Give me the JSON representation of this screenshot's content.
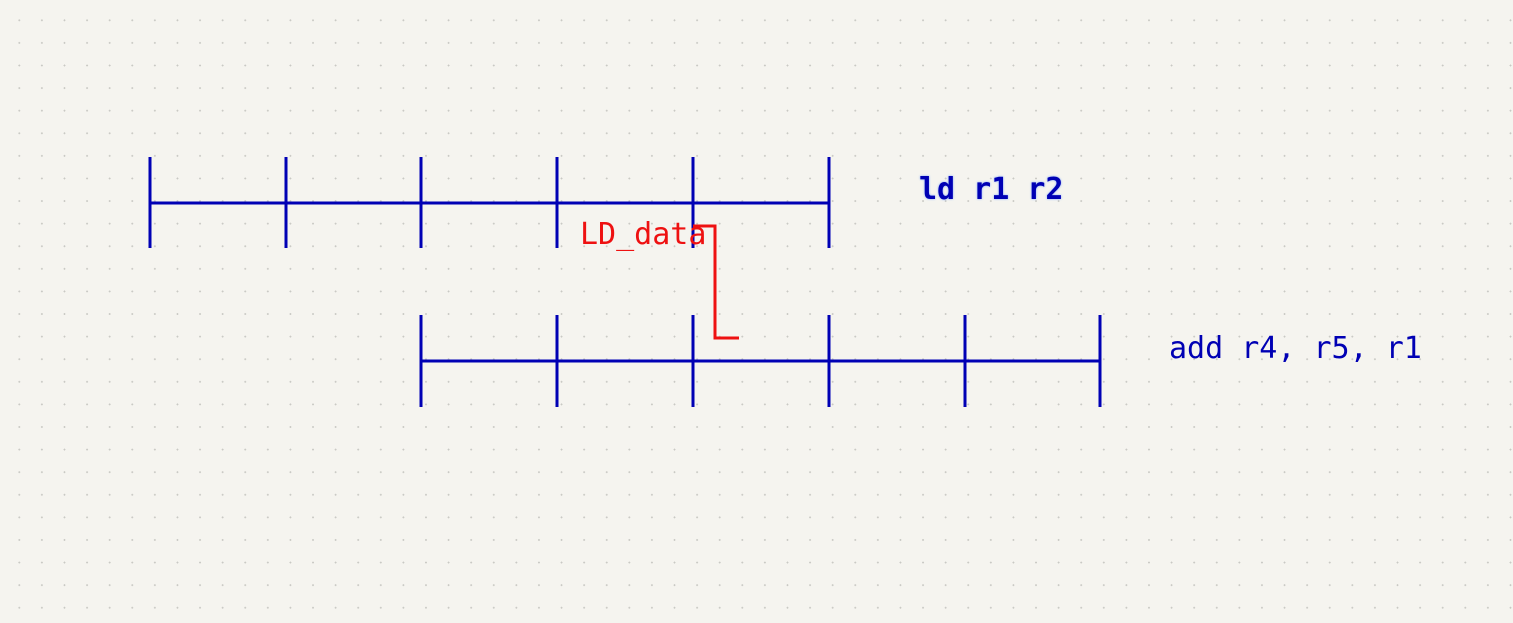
{
  "colors": {
    "lane": "#0000b4",
    "forward": "#ee1111",
    "background": "#f5f4ef"
  },
  "instructions": [
    {
      "label": "ld r1 r2",
      "stages": 5,
      "highlighted": true
    },
    {
      "label": "add r4, r5, r1",
      "stages": 5,
      "highlighted": false
    }
  ],
  "forwarding": {
    "label": "LD_data"
  }
}
